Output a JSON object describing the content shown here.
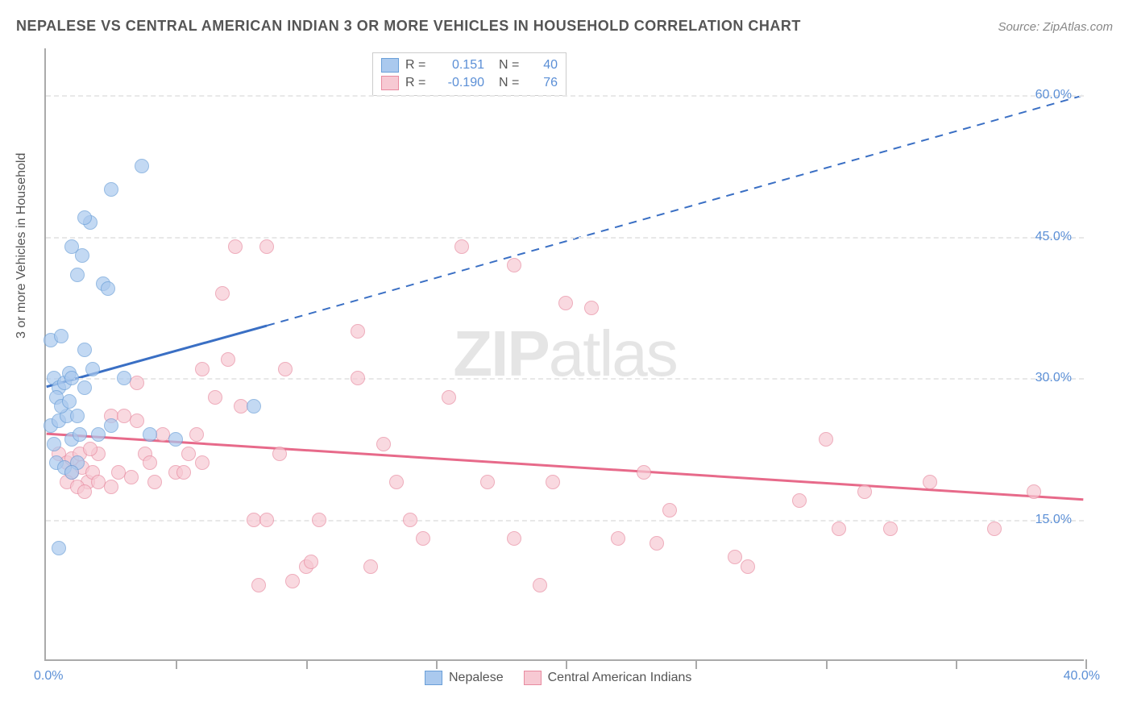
{
  "title": "NEPALESE VS CENTRAL AMERICAN INDIAN 3 OR MORE VEHICLES IN HOUSEHOLD CORRELATION CHART",
  "source": "Source: ZipAtlas.com",
  "y_axis_label": "3 or more Vehicles in Household",
  "watermark_bold": "ZIP",
  "watermark_rest": "atlas",
  "chart": {
    "type": "scatter",
    "xlim": [
      0,
      40
    ],
    "ylim": [
      0,
      65
    ],
    "x_ticks": [
      0,
      5,
      10,
      15,
      20,
      25,
      30,
      35,
      40
    ],
    "x_tick_labels": {
      "0": "0.0%",
      "40": "40.0%"
    },
    "y_grid": [
      15,
      30,
      45,
      60
    ],
    "y_tick_labels": {
      "15": "15.0%",
      "30": "30.0%",
      "45": "45.0%",
      "60": "60.0%"
    },
    "background_color": "#ffffff",
    "grid_color": "#e8e8e8",
    "axis_color": "#aaaaaa",
    "axis_value_color": "#5b8fd6",
    "text_color": "#555555",
    "marker_radius": 9,
    "marker_opacity": 0.7
  },
  "series": {
    "nepalese": {
      "label": "Nepalese",
      "fill_color": "#aac9ee",
      "stroke_color": "#6a9fd8",
      "r_label": "R =",
      "r_value": "0.151",
      "n_label": "N =",
      "n_value": "40",
      "trend": {
        "solid": {
          "x1": 0,
          "y1": 29,
          "x2": 8.5,
          "y2": 35.5
        },
        "dashed": {
          "x1": 8.5,
          "y1": 35.5,
          "x2": 40,
          "y2": 60
        },
        "color": "#3a6fc4",
        "width_solid": 3,
        "width_dashed": 2
      },
      "points": [
        {
          "x": 0.3,
          "y": 30
        },
        {
          "x": 0.5,
          "y": 29
        },
        {
          "x": 0.7,
          "y": 29.5
        },
        {
          "x": 0.9,
          "y": 30.5
        },
        {
          "x": 0.4,
          "y": 28
        },
        {
          "x": 0.2,
          "y": 34
        },
        {
          "x": 0.6,
          "y": 34.5
        },
        {
          "x": 0.2,
          "y": 25
        },
        {
          "x": 0.5,
          "y": 25.5
        },
        {
          "x": 0.8,
          "y": 26
        },
        {
          "x": 0.3,
          "y": 23
        },
        {
          "x": 1.0,
          "y": 23.5
        },
        {
          "x": 1.3,
          "y": 24
        },
        {
          "x": 0.4,
          "y": 21
        },
        {
          "x": 0.7,
          "y": 20.5
        },
        {
          "x": 1.2,
          "y": 21
        },
        {
          "x": 1.0,
          "y": 30
        },
        {
          "x": 1.5,
          "y": 29
        },
        {
          "x": 0.5,
          "y": 12
        },
        {
          "x": 1.0,
          "y": 20
        },
        {
          "x": 2.0,
          "y": 24
        },
        {
          "x": 2.5,
          "y": 25
        },
        {
          "x": 3.0,
          "y": 30
        },
        {
          "x": 4.0,
          "y": 24
        },
        {
          "x": 5.0,
          "y": 23.5
        },
        {
          "x": 2.2,
          "y": 40
        },
        {
          "x": 2.4,
          "y": 39.5
        },
        {
          "x": 1.2,
          "y": 41
        },
        {
          "x": 1.4,
          "y": 43
        },
        {
          "x": 1.0,
          "y": 44
        },
        {
          "x": 1.7,
          "y": 46.5
        },
        {
          "x": 1.5,
          "y": 47
        },
        {
          "x": 2.5,
          "y": 50
        },
        {
          "x": 3.7,
          "y": 52.5
        },
        {
          "x": 1.5,
          "y": 33
        },
        {
          "x": 1.8,
          "y": 31
        },
        {
          "x": 0.6,
          "y": 27
        },
        {
          "x": 0.9,
          "y": 27.5
        },
        {
          "x": 8.0,
          "y": 27
        },
        {
          "x": 1.2,
          "y": 26
        }
      ]
    },
    "cai": {
      "label": "Central American Indians",
      "fill_color": "#f7c9d3",
      "stroke_color": "#e88ba0",
      "r_label": "R =",
      "r_value": "-0.190",
      "n_label": "N =",
      "n_value": "76",
      "trend": {
        "solid": {
          "x1": 0,
          "y1": 24,
          "x2": 40,
          "y2": 17
        },
        "color": "#e76a8a",
        "width_solid": 3
      },
      "points": [
        {
          "x": 0.5,
          "y": 22
        },
        {
          "x": 0.8,
          "y": 21
        },
        {
          "x": 1.0,
          "y": 21.5
        },
        {
          "x": 1.3,
          "y": 22
        },
        {
          "x": 1.6,
          "y": 19
        },
        {
          "x": 1.0,
          "y": 20
        },
        {
          "x": 1.4,
          "y": 20.5
        },
        {
          "x": 1.8,
          "y": 20
        },
        {
          "x": 0.8,
          "y": 19
        },
        {
          "x": 1.2,
          "y": 18.5
        },
        {
          "x": 1.5,
          "y": 18
        },
        {
          "x": 2.0,
          "y": 19
        },
        {
          "x": 2.5,
          "y": 18.5
        },
        {
          "x": 2.0,
          "y": 22
        },
        {
          "x": 2.5,
          "y": 26
        },
        {
          "x": 3.0,
          "y": 26
        },
        {
          "x": 3.5,
          "y": 25.5
        },
        {
          "x": 3.8,
          "y": 22
        },
        {
          "x": 4.0,
          "y": 21
        },
        {
          "x": 4.5,
          "y": 24
        },
        {
          "x": 5.0,
          "y": 20
        },
        {
          "x": 5.3,
          "y": 20
        },
        {
          "x": 5.5,
          "y": 22
        },
        {
          "x": 5.8,
          "y": 24
        },
        {
          "x": 6.0,
          "y": 21
        },
        {
          "x": 6.5,
          "y": 28
        },
        {
          "x": 6.0,
          "y": 31
        },
        {
          "x": 7.3,
          "y": 44
        },
        {
          "x": 8.5,
          "y": 44
        },
        {
          "x": 6.8,
          "y": 39
        },
        {
          "x": 7.0,
          "y": 32
        },
        {
          "x": 7.5,
          "y": 27
        },
        {
          "x": 8.0,
          "y": 15
        },
        {
          "x": 8.5,
          "y": 15
        },
        {
          "x": 8.2,
          "y": 8
        },
        {
          "x": 9.0,
          "y": 22
        },
        {
          "x": 9.5,
          "y": 8.5
        },
        {
          "x": 10.0,
          "y": 10
        },
        {
          "x": 10.2,
          "y": 10.5
        },
        {
          "x": 10.5,
          "y": 15
        },
        {
          "x": 9.2,
          "y": 31
        },
        {
          "x": 12.0,
          "y": 35
        },
        {
          "x": 12.0,
          "y": 30
        },
        {
          "x": 12.5,
          "y": 10
        },
        {
          "x": 13.0,
          "y": 23
        },
        {
          "x": 13.5,
          "y": 19
        },
        {
          "x": 14.0,
          "y": 15
        },
        {
          "x": 14.5,
          "y": 13
        },
        {
          "x": 15.5,
          "y": 28
        },
        {
          "x": 16.0,
          "y": 44
        },
        {
          "x": 17.0,
          "y": 19
        },
        {
          "x": 18.0,
          "y": 13
        },
        {
          "x": 18.0,
          "y": 42
        },
        {
          "x": 19.0,
          "y": 8
        },
        {
          "x": 19.5,
          "y": 19
        },
        {
          "x": 20.0,
          "y": 38
        },
        {
          "x": 21.0,
          "y": 37.5
        },
        {
          "x": 22.0,
          "y": 13
        },
        {
          "x": 23.5,
          "y": 12.5
        },
        {
          "x": 23.0,
          "y": 20
        },
        {
          "x": 24.0,
          "y": 16
        },
        {
          "x": 26.5,
          "y": 11
        },
        {
          "x": 27.0,
          "y": 10
        },
        {
          "x": 29.0,
          "y": 17
        },
        {
          "x": 30.0,
          "y": 23.5
        },
        {
          "x": 30.5,
          "y": 14
        },
        {
          "x": 31.5,
          "y": 18
        },
        {
          "x": 32.5,
          "y": 14
        },
        {
          "x": 34.0,
          "y": 19
        },
        {
          "x": 36.5,
          "y": 14
        },
        {
          "x": 38.0,
          "y": 18
        },
        {
          "x": 2.8,
          "y": 20
        },
        {
          "x": 3.3,
          "y": 19.5
        },
        {
          "x": 4.2,
          "y": 19
        },
        {
          "x": 1.7,
          "y": 22.5
        },
        {
          "x": 3.5,
          "y": 29.5
        }
      ]
    }
  }
}
